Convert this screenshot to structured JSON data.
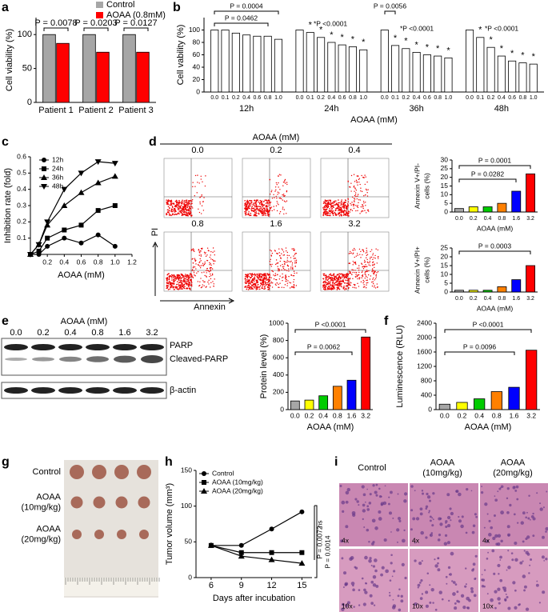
{
  "figure": {
    "panel_labels": [
      "a",
      "b",
      "c",
      "d",
      "e",
      "f",
      "g",
      "h",
      "i"
    ]
  },
  "chart_data": [
    {
      "type": "bar",
      "ylabel": "Cell viability (%)",
      "categories": [
        "Patient 1",
        "Patient 2",
        "Patient 3"
      ],
      "series": [
        {
          "name": "Control",
          "color": "#a6a6a6",
          "values": [
            100,
            100,
            100
          ]
        },
        {
          "name": "AOAA (0.8mM)",
          "color": "#ff0000",
          "values": [
            87,
            74,
            74
          ]
        }
      ],
      "ylim": [
        0,
        125
      ],
      "yticks": [
        0,
        50,
        100
      ],
      "legend": "top-right",
      "annotations": [
        "P = 0.0078",
        "P = 0.0203",
        "P = 0.0127"
      ]
    },
    {
      "type": "bar",
      "ylabel": "Cell vability (%)",
      "xlabel": "AOAA (mM)",
      "categories": [
        "0.0",
        "0.1",
        "0.2",
        "0.4",
        "0.6",
        "0.8",
        "1.0"
      ],
      "groups": [
        {
          "name": "12h",
          "values": [
            100,
            100,
            95,
            92,
            90,
            90,
            85
          ]
        },
        {
          "name": "24h",
          "values": [
            100,
            96,
            88,
            80,
            76,
            73,
            68
          ]
        },
        {
          "name": "36h",
          "values": [
            100,
            75,
            70,
            64,
            60,
            58,
            55
          ]
        },
        {
          "name": "48h",
          "values": [
            100,
            88,
            72,
            58,
            50,
            47,
            45
          ]
        }
      ],
      "color": "#ffffff",
      "ylim": [
        0,
        120
      ],
      "yticks": [
        0,
        20,
        40,
        60,
        80,
        100
      ],
      "significance_mark": "*",
      "annotations": [
        "P = 0.0004",
        "P = 0.0462",
        "*P <0.0001",
        "P = 0.0056",
        "*P <0.0001",
        "*P <0.0001"
      ]
    },
    {
      "type": "line",
      "ylabel": "Inhibition rate (fold)",
      "xlabel": "AOAA (mM)",
      "x": [
        0,
        0.1,
        0.2,
        0.4,
        0.6,
        0.8,
        1.0
      ],
      "series": [
        {
          "name": "12h",
          "color": "#000000",
          "marker": "circle",
          "values": [
            0,
            0,
            0.05,
            0.1,
            0.07,
            0.12,
            0.05
          ]
        },
        {
          "name": "24h",
          "color": "#000000",
          "marker": "square",
          "values": [
            0,
            0.02,
            0.1,
            0.15,
            0.18,
            0.27,
            0.3
          ]
        },
        {
          "name": "36h",
          "color": "#000000",
          "marker": "triangle-up",
          "values": [
            0,
            0.06,
            0.18,
            0.3,
            0.38,
            0.44,
            0.48
          ]
        },
        {
          "name": "48h",
          "color": "#000000",
          "marker": "triangle-down",
          "values": [
            0,
            0.06,
            0.2,
            0.4,
            0.5,
            0.57,
            0.56
          ]
        }
      ],
      "xlim": [
        0,
        1.2
      ],
      "xticks": [
        0.2,
        0.4,
        0.6,
        0.8,
        {
          "value": 1,
          "label": "1.0"
        },
        1.2
      ],
      "ylim": [
        0,
        0.6
      ],
      "yticks": [
        0.1,
        0.2,
        0.3,
        0.4,
        0.5,
        0.6
      ],
      "legend": "top-left"
    },
    {
      "type": "bar",
      "ylabel": [
        "Annexin V+/PI-",
        "cells (%)"
      ],
      "xlabel": "AOAA (mM)",
      "categories": [
        "0.0",
        "0.2",
        "0.4",
        "0.8",
        "1.6",
        "3.2"
      ],
      "values": [
        2,
        3,
        3,
        5,
        12,
        22
      ],
      "colors": [
        "#a6a6a6",
        "#ffff00",
        "#00cc00",
        "#ff8000",
        "#0000ff",
        "#ff0000"
      ],
      "ylim": [
        0,
        30
      ],
      "yticks": [
        0,
        5,
        10,
        15,
        20,
        25,
        30
      ],
      "annotations": [
        "P = 0.0282",
        "P = 0.0001"
      ]
    },
    {
      "type": "bar",
      "ylabel": [
        "Annexin V+/PI+",
        "cells (%)"
      ],
      "xlabel": "AOAA (mM)",
      "categories": [
        "0.0",
        "0.2",
        "0.4",
        "0.8",
        "1.6",
        "3.2"
      ],
      "values": [
        1,
        1,
        1,
        3,
        7,
        15
      ],
      "colors": [
        "#a6a6a6",
        "#ffff00",
        "#00cc00",
        "#ff8000",
        "#0000ff",
        "#ff0000"
      ],
      "ylim": [
        0,
        25
      ],
      "yticks": [
        0,
        5,
        10,
        15,
        20,
        25
      ],
      "annotations": [
        "P = 0.0003"
      ]
    },
    {
      "type": "bar",
      "ylabel": "Protein level (%)",
      "xlabel": "AOAA (mM)",
      "categories": [
        "0.0",
        "0.2",
        "0.4",
        "0.8",
        "1.6",
        "3.2"
      ],
      "values": [
        100,
        110,
        160,
        270,
        340,
        840
      ],
      "colors": [
        "#a6a6a6",
        "#ffff00",
        "#00cc00",
        "#ff8000",
        "#0000ff",
        "#ff0000"
      ],
      "ylim": [
        0,
        1000
      ],
      "yticks": [
        0,
        200,
        400,
        600,
        800,
        1000
      ],
      "annotations": [
        "P = 0.0062",
        "P <0.0001"
      ]
    },
    {
      "type": "bar",
      "ylabel": "Luminescence (RLU)",
      "xlabel": "AOAA (mM)",
      "categories": [
        "0.0",
        "0.2",
        "0.4",
        "0.8",
        "1.6",
        "3.2"
      ],
      "values": [
        150,
        200,
        300,
        500,
        620,
        1650
      ],
      "colors": [
        "#a6a6a6",
        "#ffff00",
        "#00cc00",
        "#ff8000",
        "#0000ff",
        "#ff0000"
      ],
      "ylim": [
        0,
        2400
      ],
      "yticks": [
        0,
        400,
        800,
        1200,
        1600,
        2000,
        2400
      ],
      "annotations": [
        "P = 0.0096",
        "P <0.0001"
      ]
    },
    {
      "type": "line",
      "ylabel": "Tumor volume (mm³)",
      "xlabel": "Days after incubation",
      "x": [
        6,
        9,
        12,
        15
      ],
      "series": [
        {
          "name": "Control",
          "color": "#000000",
          "marker": "circle",
          "values": [
            45,
            45,
            68,
            92
          ]
        },
        {
          "name": "AOAA (10mg/kg)",
          "color": "#000000",
          "marker": "square",
          "values": [
            45,
            35,
            35,
            35
          ]
        },
        {
          "name": "AOAA (20mg/kg)",
          "color": "#000000",
          "marker": "triangle-up",
          "values": [
            45,
            30,
            25,
            20
          ]
        }
      ],
      "xlim": [
        4.5,
        16
      ],
      "xticks": [
        6,
        9,
        12,
        15
      ],
      "ylim": [
        0,
        150
      ],
      "yticks": [
        0,
        50,
        100,
        150
      ],
      "legend": "top-left",
      "annotations": [
        "ns",
        "P = 0.0072",
        "P = 0.0014"
      ]
    }
  ],
  "flow": {
    "title": "AOAA (mM)",
    "doses": [
      "0.0",
      "0.2",
      "0.4",
      "0.8",
      "1.6",
      "3.2"
    ],
    "y_axis": "PI",
    "x_axis": "Annexin"
  },
  "blot": {
    "title": "AOAA (mM)",
    "doses": [
      "0.0",
      "0.2",
      "0.4",
      "0.8",
      "1.6",
      "3.2"
    ],
    "bands": [
      "PARP",
      "Cleaved-PARP",
      "β-actin"
    ]
  },
  "tumors": {
    "groups": [
      [
        "Control"
      ],
      [
        "AOAA",
        "(10mg/kg)"
      ],
      [
        "AOAA",
        "(20mg/kg)"
      ]
    ]
  },
  "histology": {
    "columns": [
      [
        "Control"
      ],
      [
        "AOAA",
        "(10mg/kg)"
      ],
      [
        "AOAA",
        "(20mg/kg)"
      ]
    ],
    "magnifications": [
      "4x",
      "10x"
    ]
  }
}
